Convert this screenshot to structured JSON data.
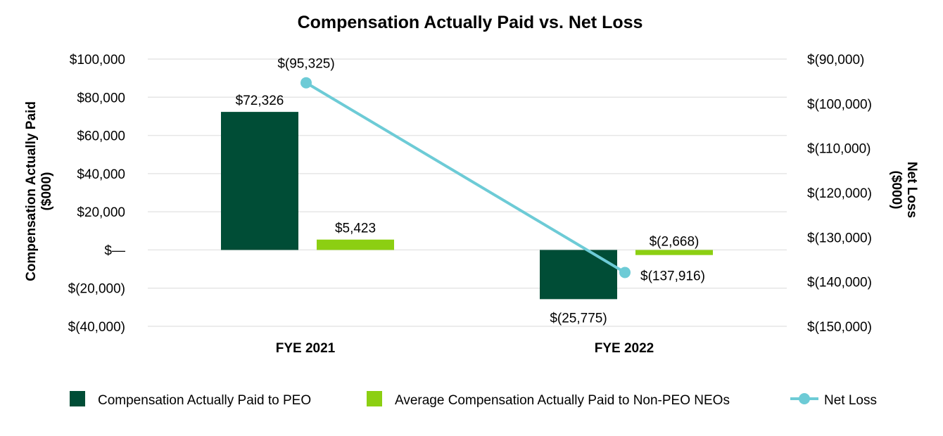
{
  "chart_data": {
    "type": "bar",
    "title": "Compensation Actually Paid vs. Net Loss",
    "categories": [
      "FYE 2021",
      "FYE 2022"
    ],
    "series": [
      {
        "name": "Compensation Actually Paid to PEO",
        "kind": "bar",
        "axis": "left",
        "color": "#004d36",
        "values": [
          72326,
          -25775
        ],
        "labels": [
          "$72,326",
          "$(25,775)"
        ]
      },
      {
        "name": "Average Compensation Actually Paid to Non-PEO NEOs",
        "kind": "bar",
        "axis": "left",
        "color": "#8ccf12",
        "values": [
          5423,
          -2668
        ],
        "labels": [
          "$5,423",
          "$(2,668)"
        ]
      },
      {
        "name": "Net Loss",
        "kind": "line",
        "axis": "right",
        "color": "#6dcbd6",
        "values": [
          -95325,
          -137916
        ],
        "labels": [
          "$(95,325)",
          "$(137,916)"
        ]
      }
    ],
    "left_axis": {
      "title_lines": [
        "Compensation Actually Paid",
        "($000)"
      ],
      "range": [
        -40000,
        100000
      ],
      "tick_values": [
        100000,
        80000,
        60000,
        40000,
        20000,
        0,
        -20000,
        -40000
      ],
      "tick_labels": [
        "$100,000",
        "$80,000",
        "$60,000",
        "$40,000",
        "$20,000",
        "$—",
        "$(20,000)",
        "$(40,000)"
      ]
    },
    "right_axis": {
      "title_lines": [
        "Net Loss",
        "($000)"
      ],
      "range": [
        -150000,
        -90000
      ],
      "tick_values": [
        -90000,
        -100000,
        -110000,
        -120000,
        -130000,
        -140000,
        -150000
      ],
      "tick_labels": [
        "$(90,000)",
        "$(100,000)",
        "$(110,000)",
        "$(120,000)",
        "$(130,000)",
        "$(140,000)",
        "$(150,000)"
      ]
    },
    "grid": true,
    "legend_position": "bottom",
    "gridline_color": "#e6e6e6"
  }
}
